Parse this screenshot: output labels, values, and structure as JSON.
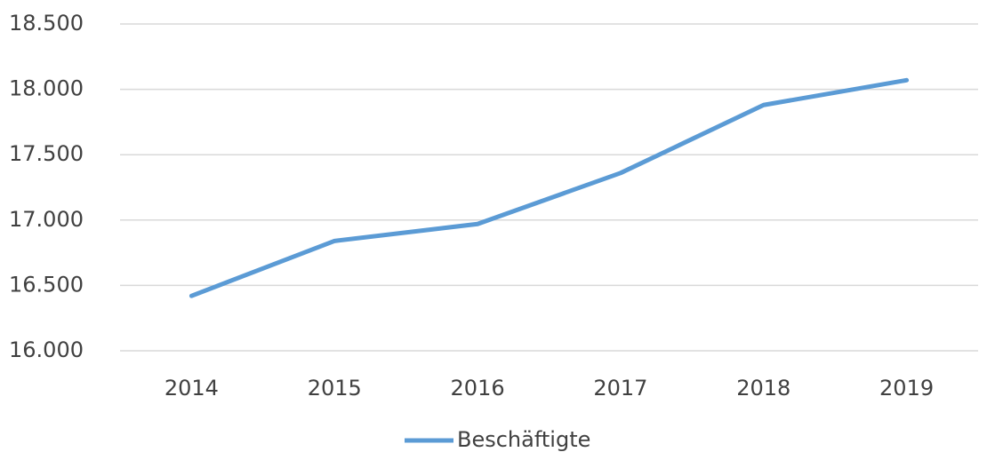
{
  "chart_data": {
    "type": "line",
    "categories": [
      "2014",
      "2015",
      "2016",
      "2017",
      "2018",
      "2019"
    ],
    "series": [
      {
        "name": "Beschäftigte",
        "color": "#5b9bd5",
        "values": [
          16420,
          16840,
          16970,
          17360,
          17880,
          18070
        ]
      }
    ],
    "ylim": [
      16000,
      18500
    ],
    "yticks": [
      {
        "value": 16000,
        "label": "16.000"
      },
      {
        "value": 16500,
        "label": "16.500"
      },
      {
        "value": 17000,
        "label": "17.000"
      },
      {
        "value": 17500,
        "label": "17.500"
      },
      {
        "value": 18000,
        "label": "18.000"
      },
      {
        "value": 18500,
        "label": "18.500"
      }
    ],
    "grid": true,
    "legend": "bottom"
  }
}
